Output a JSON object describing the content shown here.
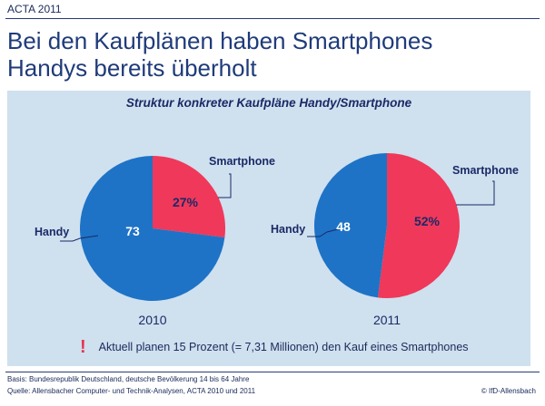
{
  "header": {
    "label": "ACTA 2011"
  },
  "title": {
    "line1": "Bei den Kaufplänen haben Smartphones",
    "line2": "Handys bereits überholt"
  },
  "colors": {
    "handy": "#1e73c6",
    "smartphone": "#f0385a",
    "panel": "#cfe0ef",
    "text": "#1a2a66"
  },
  "chart_data": [
    {
      "type": "pie",
      "title": "Struktur konkreter Kaufpläne Handy/Smartphone",
      "year_label": "2010",
      "slices": [
        {
          "name": "Smartphone",
          "value": 27,
          "value_label": "27%"
        },
        {
          "name": "Handy",
          "value": 73,
          "value_label": "73"
        }
      ]
    },
    {
      "type": "pie",
      "title": "Struktur konkreter Kaufpläne Handy/Smartphone",
      "year_label": "2011",
      "slices": [
        {
          "name": "Smartphone",
          "value": 52,
          "value_label": "52%"
        },
        {
          "name": "Handy",
          "value": 48,
          "value_label": "48"
        }
      ]
    }
  ],
  "note": {
    "icon": "exclamation-icon",
    "text": "Aktuell planen 15 Prozent (= 7,31 Millionen) den Kauf eines Smartphones"
  },
  "footer": {
    "basis": "Basis: Bundesrepublik Deutschland, deutsche Bevölkerung 14 bis 64 Jahre",
    "source": "Quelle: Allensbacher Computer- und Technik-Analysen, ACTA 2010 und 2011",
    "credit": "© IfD-Allensbach"
  }
}
